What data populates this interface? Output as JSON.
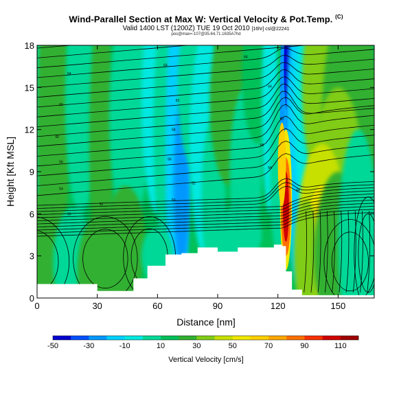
{
  "chart_data": {
    "type": "heatmap",
    "title": "Wind-Parallel Section at Max W: Vertical Velocity & Pot.Temp.",
    "title_mark": "(C)",
    "subtitle_main": "Valid 1400 LST (1200Z) TUE 19 Oct 2010",
    "subtitle_small": "[16hr] csl@22241",
    "subtitle_line3": "pos@max=-107@35.64,71.1635A7hd",
    "xlabel": "Distance [nm]",
    "ylabel": "Height [Kft MSL]",
    "xlim": [
      0,
      168
    ],
    "ylim": [
      0,
      18
    ],
    "xticks": [
      "0",
      "30",
      "60",
      "90",
      "120",
      "150"
    ],
    "xtick_values": [
      0,
      30,
      60,
      90,
      120,
      150
    ],
    "yticks": [
      "0",
      "3",
      "6",
      "9",
      "12",
      "15",
      "18"
    ],
    "ytick_values": [
      0,
      3,
      6,
      9,
      12,
      15,
      18
    ],
    "colorbar": {
      "label": "Vertical Velocity [cm/s]",
      "tick_labels": [
        "-50",
        "-30",
        "-10",
        "10",
        "30",
        "50",
        "70",
        "90",
        "110"
      ],
      "tick_values": [
        -50,
        -30,
        -10,
        10,
        30,
        50,
        70,
        90,
        110
      ],
      "colors": [
        "#0000d0",
        "#0050ff",
        "#0098ff",
        "#00d0ff",
        "#00e8e0",
        "#00d898",
        "#00c058",
        "#30b030",
        "#80cc18",
        "#c8e000",
        "#f0e800",
        "#ffd000",
        "#ffa800",
        "#ff7000",
        "#f83000",
        "#d00000",
        "#a00000"
      ]
    },
    "contour_labels": [
      "64",
      "64",
      "64",
      "64",
      "62",
      "62",
      "60",
      "60",
      "58",
      "58",
      "56",
      "56",
      "54",
      "54",
      "52",
      "52",
      "50",
      "50",
      "44"
    ],
    "terrain_top_kft": [
      [
        0,
        1.0
      ],
      [
        20,
        1.0
      ],
      [
        30,
        0.5
      ],
      [
        40,
        0.5
      ],
      [
        48,
        1.4
      ],
      [
        55,
        2.3
      ],
      [
        64,
        3.1
      ],
      [
        72,
        3.2
      ],
      [
        80,
        3.6
      ],
      [
        90,
        3.3
      ],
      [
        100,
        3.6
      ],
      [
        112,
        3.6
      ],
      [
        118,
        3.8
      ],
      [
        122,
        3.7
      ],
      [
        124,
        1.9
      ],
      [
        127,
        0.6
      ],
      [
        132,
        0.2
      ],
      [
        168,
        0.2
      ]
    ]
  }
}
